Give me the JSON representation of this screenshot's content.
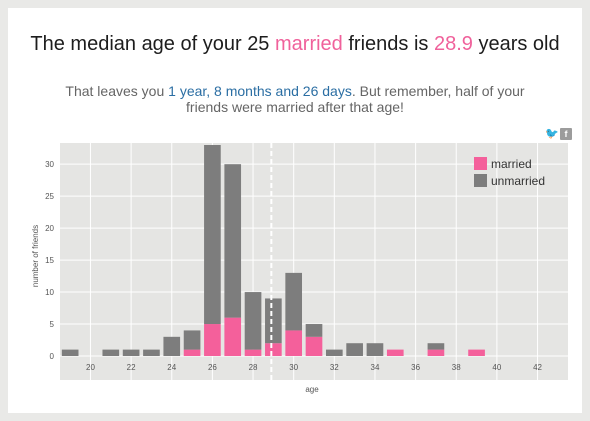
{
  "headline": {
    "prefix": "The median age of your 25 ",
    "highlight": "married",
    "mid": " friends is ",
    "median": "28.9",
    "suffix": " years old"
  },
  "subline": {
    "prefix": "That leaves you ",
    "highlight": "1 year, 8 months and 26 days",
    "suffix": ". But remember, half of your friends were married after that age!"
  },
  "share": {
    "twitter_icon": "twitter-icon",
    "facebook_icon": "facebook-icon"
  },
  "colors": {
    "married": "#f4609b",
    "unmarried": "#7d7d7d",
    "plot_bg": "#e5e5e3",
    "grid": "#ffffff",
    "median_line": "#ffffff"
  },
  "chart_data": {
    "type": "bar",
    "stacked": true,
    "xlabel": "age",
    "ylabel": "number of friends",
    "xlim": [
      18.5,
      43.5
    ],
    "ylim": [
      0,
      33
    ],
    "x_ticks": [
      20,
      22,
      24,
      26,
      28,
      30,
      32,
      34,
      36,
      38,
      40,
      42
    ],
    "y_ticks": [
      0,
      5,
      10,
      15,
      20,
      25,
      30
    ],
    "grid": true,
    "legend_position": "top-right",
    "median_line_x": 28.9,
    "x": [
      19,
      21,
      22,
      23,
      24,
      25,
      26,
      27,
      28,
      29,
      30,
      31,
      32,
      33,
      34,
      35,
      37,
      39
    ],
    "series": [
      {
        "name": "married",
        "values": [
          0,
          0,
          0,
          0,
          0,
          1,
          5,
          6,
          1,
          2,
          4,
          3,
          0,
          0,
          0,
          1,
          1,
          1
        ]
      },
      {
        "name": "unmarried",
        "values": [
          1,
          1,
          1,
          1,
          3,
          3,
          28,
          24,
          9,
          7,
          9,
          2,
          1,
          2,
          2,
          0,
          1,
          0
        ]
      }
    ]
  }
}
